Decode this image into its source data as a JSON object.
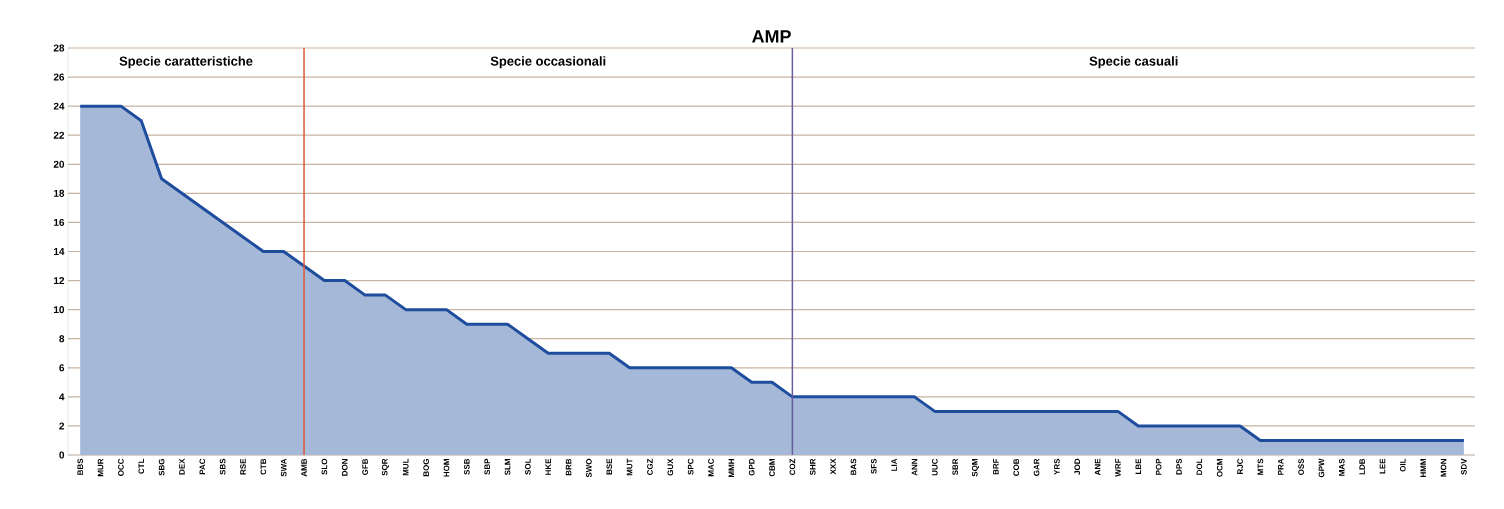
{
  "chart_data": {
    "type": "area",
    "title": "AMP",
    "categories": [
      "BBS",
      "MUR",
      "OCC",
      "CTL",
      "SBG",
      "DEX",
      "PAC",
      "SBS",
      "RSE",
      "CTB",
      "SWA",
      "AMB",
      "SLO",
      "DON",
      "GFB",
      "SQR",
      "MUL",
      "BOG",
      "HOM",
      "SSB",
      "SBP",
      "SLM",
      "SOL",
      "HKE",
      "BRB",
      "SWO",
      "BSE",
      "MUT",
      "CGZ",
      "GUX",
      "SPC",
      "MAC",
      "MMH",
      "GPD",
      "CBM",
      "COZ",
      "SHR",
      "XXX",
      "BAS",
      "SFS",
      "LIA",
      "ANN",
      "UUC",
      "SBR",
      "SQM",
      "BRF",
      "COB",
      "GAR",
      "YRS",
      "JOD",
      "ANE",
      "WRF",
      "LBE",
      "POP",
      "DPS",
      "DOL",
      "OCM",
      "RJC",
      "MTS",
      "PRA",
      "OSS",
      "GPW",
      "MAS",
      "LDB",
      "LEE",
      "OIL",
      "HMM",
      "MON",
      "SDV"
    ],
    "values": [
      24,
      24,
      24,
      23,
      19,
      18,
      17,
      16,
      15,
      14,
      14,
      13,
      12,
      12,
      11,
      11,
      10,
      10,
      10,
      9,
      9,
      9,
      8,
      7,
      7,
      7,
      7,
      6,
      6,
      6,
      6,
      6,
      6,
      5,
      5,
      4,
      4,
      4,
      4,
      4,
      4,
      4,
      3,
      3,
      3,
      3,
      3,
      3,
      3,
      3,
      3,
      3,
      2,
      2,
      2,
      2,
      2,
      2,
      1,
      1,
      1,
      1,
      1,
      1,
      1,
      1,
      1,
      1,
      1
    ],
    "color": "#1f4d9e",
    "ylim": [
      0,
      28
    ],
    "yticks": [
      0,
      2,
      4,
      6,
      8,
      10,
      12,
      14,
      16,
      18,
      20,
      22,
      24,
      26,
      28
    ],
    "grid": "y",
    "ref_lines": [
      {
        "axis": "x",
        "value": "AMB",
        "color": "#d9583a"
      },
      {
        "axis": "x",
        "value": "COZ",
        "color": "#6a5aa0"
      }
    ],
    "annotations": [
      "Specie caratteristiche",
      "Specie occasionali",
      "Specie casuali"
    ]
  }
}
